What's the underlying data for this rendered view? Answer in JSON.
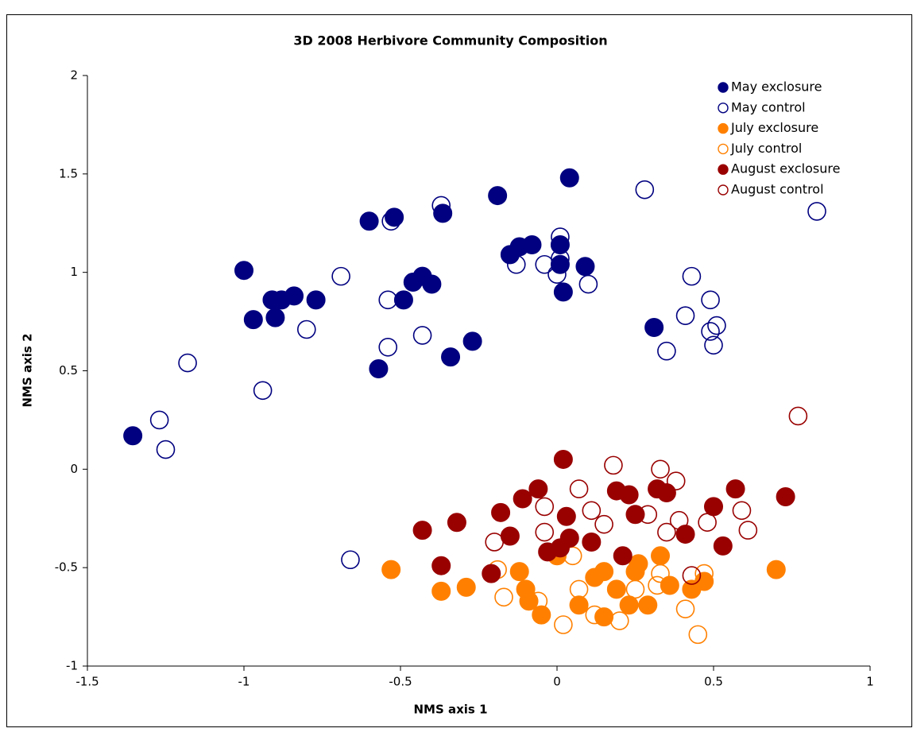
{
  "chart_data": {
    "type": "scatter",
    "title": "3D 2008 Herbivore Community Composition",
    "x_label": "NMS axis 1",
    "y_label": "NMS axis 2",
    "xlim": [
      -1.5,
      1
    ],
    "ylim": [
      -1,
      2
    ],
    "xticks": [
      -1.5,
      -1,
      -0.5,
      0,
      0.5,
      1
    ],
    "yticks": [
      -1,
      -0.5,
      0,
      0.5,
      1,
      1.5,
      2
    ],
    "legend_position": "upper right",
    "series": [
      {
        "name": "May exclosure",
        "color": "#000080",
        "filled": true,
        "x": [
          -1.355,
          -1.0,
          -0.97,
          -0.9,
          -0.91,
          -0.88,
          -0.84,
          -0.77,
          -0.6,
          -0.52,
          -0.365,
          -0.19,
          0.04,
          -0.49,
          -0.46,
          -0.43,
          -0.4,
          -0.57,
          -0.34,
          -0.27,
          -0.15,
          -0.12,
          -0.08,
          0.01,
          0.01,
          0.09,
          0.02,
          0.31
        ],
        "values": [
          0.17,
          1.01,
          0.76,
          0.77,
          0.86,
          0.86,
          0.88,
          0.86,
          1.26,
          1.28,
          1.3,
          1.39,
          1.48,
          0.86,
          0.95,
          0.98,
          0.94,
          0.51,
          0.57,
          0.65,
          1.09,
          1.13,
          1.14,
          1.14,
          1.04,
          1.03,
          0.9,
          0.72
        ]
      },
      {
        "name": "May control",
        "color": "#000080",
        "filled": false,
        "x": [
          -1.27,
          -1.25,
          -1.18,
          -0.94,
          -0.8,
          -0.69,
          -0.53,
          -0.37,
          -0.54,
          -0.54,
          -0.43,
          -0.13,
          -0.04,
          0.01,
          0.01,
          0.0,
          0.1,
          0.28,
          0.83,
          0.43,
          0.41,
          0.35,
          0.49,
          0.49,
          0.51,
          0.5,
          -0.66
        ],
        "values": [
          0.25,
          0.1,
          0.54,
          0.4,
          0.71,
          0.98,
          1.26,
          1.34,
          0.86,
          0.62,
          0.68,
          1.04,
          1.04,
          1.18,
          1.07,
          0.99,
          0.94,
          1.42,
          1.31,
          0.98,
          0.78,
          0.6,
          0.86,
          0.7,
          0.73,
          0.63,
          -0.46
        ]
      },
      {
        "name": "July exclosure",
        "color": "#ff8000",
        "filled": true,
        "x": [
          -0.53,
          -0.37,
          -0.29,
          -0.1,
          -0.09,
          -0.05,
          0.0,
          0.07,
          0.12,
          0.15,
          0.19,
          0.15,
          0.23,
          0.26,
          0.29,
          0.33,
          0.36,
          0.43,
          0.47,
          0.7,
          -0.12,
          0.25
        ],
        "values": [
          -0.51,
          -0.62,
          -0.6,
          -0.61,
          -0.67,
          -0.74,
          -0.44,
          -0.69,
          -0.55,
          -0.52,
          -0.61,
          -0.75,
          -0.69,
          -0.48,
          -0.69,
          -0.44,
          -0.59,
          -0.61,
          -0.57,
          -0.51,
          -0.52,
          -0.52
        ]
      },
      {
        "name": "July control",
        "color": "#ff8000",
        "filled": false,
        "x": [
          -0.19,
          -0.17,
          -0.06,
          0.02,
          0.05,
          0.2,
          0.25,
          0.32,
          0.41,
          0.45,
          0.47,
          0.07,
          0.12,
          0.33
        ],
        "values": [
          -0.51,
          -0.65,
          -0.67,
          -0.79,
          -0.44,
          -0.77,
          -0.61,
          -0.59,
          -0.71,
          -0.84,
          -0.53,
          -0.61,
          -0.74,
          -0.53
        ]
      },
      {
        "name": "August exclosure",
        "color": "#990000",
        "filled": true,
        "x": [
          -0.43,
          -0.32,
          -0.37,
          -0.21,
          -0.18,
          -0.15,
          -0.11,
          -0.06,
          -0.03,
          0.01,
          0.02,
          0.03,
          0.04,
          0.11,
          0.19,
          0.23,
          0.25,
          0.21,
          0.32,
          0.35,
          0.41,
          0.5,
          0.57,
          0.53,
          0.73
        ],
        "values": [
          -0.31,
          -0.27,
          -0.49,
          -0.53,
          -0.22,
          -0.34,
          -0.15,
          -0.1,
          -0.42,
          -0.4,
          0.05,
          -0.24,
          -0.35,
          -0.37,
          -0.11,
          -0.13,
          -0.23,
          -0.44,
          -0.1,
          -0.12,
          -0.33,
          -0.19,
          -0.1,
          -0.39,
          -0.14
        ]
      },
      {
        "name": "August control",
        "color": "#990000",
        "filled": false,
        "x": [
          -0.2,
          -0.04,
          -0.04,
          0.07,
          0.11,
          0.18,
          0.15,
          0.29,
          0.33,
          0.38,
          0.35,
          0.39,
          0.48,
          0.59,
          0.61,
          0.77,
          0.43
        ],
        "values": [
          -0.37,
          -0.19,
          -0.32,
          -0.1,
          -0.21,
          0.02,
          -0.28,
          -0.23,
          0.0,
          -0.06,
          -0.32,
          -0.26,
          -0.27,
          -0.21,
          -0.31,
          0.27,
          -0.54
        ]
      }
    ]
  }
}
